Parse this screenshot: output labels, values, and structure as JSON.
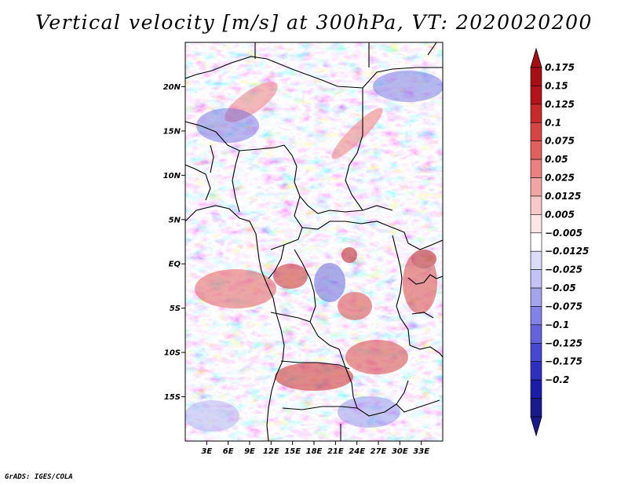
{
  "title": "Vertical velocity [m/s] at 300hPa, VT: 2020020200",
  "footer": "GrADS: IGES/COLA",
  "map": {
    "lon_range": [
      0,
      36
    ],
    "lat_range": [
      -20,
      25
    ],
    "lat_ticks": [
      {
        "value": 20,
        "label": "20N"
      },
      {
        "value": 15,
        "label": "15N"
      },
      {
        "value": 10,
        "label": "10N"
      },
      {
        "value": 5,
        "label": "5N"
      },
      {
        "value": 0,
        "label": "EQ"
      },
      {
        "value": -5,
        "label": "5S"
      },
      {
        "value": -10,
        "label": "10S"
      },
      {
        "value": -15,
        "label": "15S"
      }
    ],
    "lon_ticks": [
      {
        "value": 3,
        "label": "3E"
      },
      {
        "value": 6,
        "label": "6E"
      },
      {
        "value": 9,
        "label": "9E"
      },
      {
        "value": 12,
        "label": "12E"
      },
      {
        "value": 15,
        "label": "15E"
      },
      {
        "value": 18,
        "label": "18E"
      },
      {
        "value": 21,
        "label": "21E"
      },
      {
        "value": 24,
        "label": "24E"
      },
      {
        "value": 27,
        "label": "27E"
      },
      {
        "value": 30,
        "label": "30E"
      },
      {
        "value": 33,
        "label": "33E"
      }
    ]
  },
  "colorbar": {
    "levels": [
      {
        "label": "0.175",
        "color": "#a50f15"
      },
      {
        "label": "0.15",
        "color": "#b3141c"
      },
      {
        "label": "0.125",
        "color": "#c62a2a"
      },
      {
        "label": "0.1",
        "color": "#d64545"
      },
      {
        "label": "0.075",
        "color": "#e06060"
      },
      {
        "label": "0.05",
        "color": "#ea8080"
      },
      {
        "label": "0.025",
        "color": "#f2a3a3"
      },
      {
        "label": "0.0125",
        "color": "#f8c8c8"
      },
      {
        "label": "0.005",
        "color": "#fce6e6"
      },
      {
        "label": "−0.005",
        "color": "#ffffff"
      },
      {
        "label": "−0.0125",
        "color": "#dcdcf8"
      },
      {
        "label": "−0.025",
        "color": "#c2c2f4"
      },
      {
        "label": "−0.05",
        "color": "#a3a3ee"
      },
      {
        "label": "−0.075",
        "color": "#8282e6"
      },
      {
        "label": "−0.1",
        "color": "#6363dc"
      },
      {
        "label": "−0.125",
        "color": "#4848cf"
      },
      {
        "label": "−0.175",
        "color": "#2f2fbe"
      },
      {
        "label": "−0.2",
        "color": "#1c1ca8"
      }
    ],
    "top_triangle_color": "#a50f15",
    "bottom_triangle_color": "#1a1a8c"
  }
}
